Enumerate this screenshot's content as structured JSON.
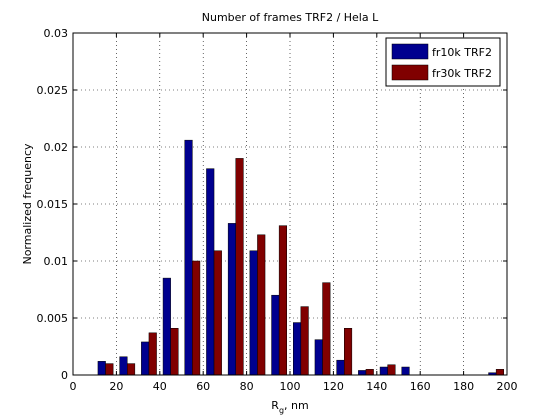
{
  "chart_data": {
    "type": "bar",
    "title": "Number of frames TRF2 / Hela L",
    "xlabel": {
      "main": "R",
      "sub": "g",
      "suffix": ", nm"
    },
    "ylabel": "Normalized frequency",
    "xlim": [
      0,
      200
    ],
    "ylim": [
      0,
      0.03
    ],
    "grid": true,
    "grid_style": "dotted",
    "legend_position": "top-right",
    "x_ticks": [
      "0",
      "20",
      "40",
      "60",
      "80",
      "100",
      "120",
      "140",
      "160",
      "180",
      "200"
    ],
    "y_ticks": [
      "0",
      "0.005",
      "0.01",
      "0.015",
      "0.02",
      "0.025",
      "0.03"
    ],
    "bin_width": 10,
    "x": [
      15,
      25,
      35,
      45,
      55,
      65,
      75,
      85,
      95,
      105,
      115,
      125,
      135,
      145,
      155,
      165,
      175,
      185,
      195
    ],
    "series": [
      {
        "name": "fr10k TRF2",
        "color": "#00008f",
        "values": [
          0.0012,
          0.0016,
          0.0029,
          0.0085,
          0.0206,
          0.0181,
          0.0133,
          0.0109,
          0.007,
          0.0046,
          0.0031,
          0.0013,
          0.0004,
          0.0007,
          0.0007,
          0,
          0,
          0,
          0.0002
        ]
      },
      {
        "name": "fr30k TRF2",
        "color": "#800000",
        "values": [
          0.001,
          0.001,
          0.0037,
          0.0041,
          0.01,
          0.0109,
          0.019,
          0.0123,
          0.0131,
          0.006,
          0.0081,
          0.0041,
          0.0005,
          0.0009,
          0,
          0,
          0,
          0,
          0.0005
        ]
      }
    ]
  }
}
